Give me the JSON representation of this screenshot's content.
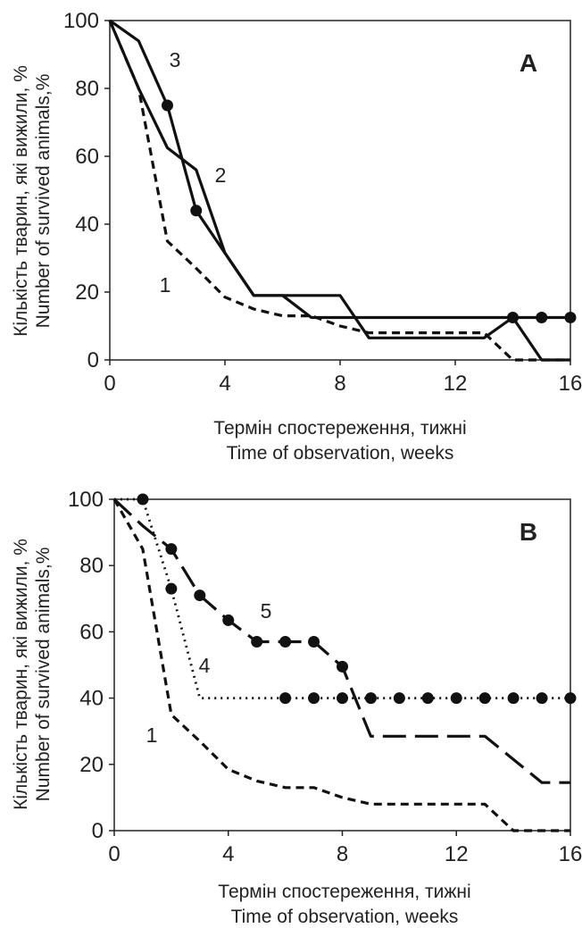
{
  "chart_data": [
    {
      "type": "line",
      "panel_label": "A",
      "title": "",
      "xlabel": [
        "Термін спостереження, тижні",
        "Time of observation, weeks"
      ],
      "ylabel": [
        "Кількість тварин, які вижили, %",
        "Number of survived animals,%"
      ],
      "xlim": [
        0,
        16
      ],
      "ylim": [
        0,
        100
      ],
      "xticks": [
        "0",
        "4",
        "8",
        "12",
        "16"
      ],
      "yticks": [
        "0",
        "20",
        "40",
        "60",
        "80",
        "100"
      ],
      "grid": false,
      "legend": "none",
      "curve_labels": [
        "1",
        "2",
        "3"
      ],
      "series": [
        {
          "label": "1",
          "line_style": "dashed",
          "markers": false,
          "x": [
            0,
            1,
            2,
            3,
            4,
            5,
            6,
            7,
            8,
            9,
            10,
            11,
            12,
            13,
            14,
            15,
            16
          ],
          "y": [
            100,
            80,
            35,
            27,
            18.5,
            15,
            13,
            13,
            10,
            8,
            8,
            8,
            8,
            8,
            0,
            0,
            0
          ]
        },
        {
          "label": "2",
          "line_style": "solid",
          "markers": false,
          "x": [
            0,
            1,
            2,
            3,
            4,
            5,
            6,
            7,
            8,
            9,
            10,
            11,
            12,
            13,
            14,
            15,
            16
          ],
          "y": [
            100,
            80,
            62.5,
            56,
            31.5,
            19,
            19,
            12.5,
            12.5,
            12.5,
            12.5,
            12.5,
            12.5,
            12.5,
            12.5,
            0,
            0
          ]
        },
        {
          "label": "3",
          "line_style": "solid",
          "markers": true,
          "marker_x": [
            2,
            3,
            14,
            15,
            16
          ],
          "x": [
            0,
            1,
            2,
            3,
            4,
            5,
            6,
            7,
            8,
            9,
            10,
            11,
            12,
            13,
            14,
            15,
            16
          ],
          "y": [
            100,
            94,
            75,
            44,
            31.5,
            19,
            19,
            19,
            19,
            6.5,
            6.5,
            6.5,
            6.5,
            6.5,
            12.5,
            12.5,
            12.5
          ]
        }
      ]
    },
    {
      "type": "line",
      "panel_label": "B",
      "title": "",
      "xlabel": [
        "Термін спостереження, тижні",
        "Time of observation, weeks"
      ],
      "ylabel": [
        "Кількість тварин, які вижили, %",
        "Number of survived  animals,%"
      ],
      "xlim": [
        0,
        16
      ],
      "ylim": [
        0,
        100
      ],
      "xticks": [
        "0",
        "4",
        "8",
        "12",
        "16"
      ],
      "yticks": [
        "0",
        "20",
        "40",
        "60",
        "80",
        "100"
      ],
      "grid": false,
      "legend": "none",
      "curve_labels": [
        "1",
        "4",
        "5"
      ],
      "series": [
        {
          "label": "1",
          "line_style": "dashed",
          "markers": false,
          "x": [
            0,
            1,
            2,
            3,
            4,
            5,
            6,
            7,
            8,
            9,
            10,
            11,
            12,
            13,
            14,
            15,
            16
          ],
          "y": [
            100,
            85,
            35,
            27,
            18.5,
            15,
            13,
            13,
            10,
            8,
            8,
            8,
            8,
            8,
            0,
            0,
            0
          ]
        },
        {
          "label": "4",
          "line_style": "dotted",
          "markers": true,
          "marker_x": [
            1,
            2,
            6,
            7,
            8,
            9,
            10,
            11,
            12,
            13,
            14,
            15,
            16
          ],
          "x": [
            0,
            1,
            2,
            3,
            4,
            5,
            6,
            7,
            8,
            9,
            10,
            11,
            12,
            13,
            14,
            15,
            16
          ],
          "y": [
            100,
            100,
            73,
            40,
            40,
            40,
            40,
            40,
            40,
            40,
            40,
            40,
            40,
            40,
            40,
            40,
            40
          ]
        },
        {
          "label": "5",
          "line_style": "long-dashed",
          "markers": true,
          "marker_x": [
            2,
            3,
            4,
            5,
            6,
            7,
            8
          ],
          "x": [
            0,
            1,
            2,
            3,
            4,
            5,
            6,
            7,
            8,
            9,
            10,
            11,
            12,
            13,
            14,
            15,
            16
          ],
          "y": [
            100,
            92,
            85,
            71,
            63.5,
            57,
            57,
            57,
            49.5,
            28.5,
            28.5,
            28.5,
            28.5,
            28.5,
            21.5,
            14.5,
            14.5
          ]
        }
      ]
    }
  ]
}
